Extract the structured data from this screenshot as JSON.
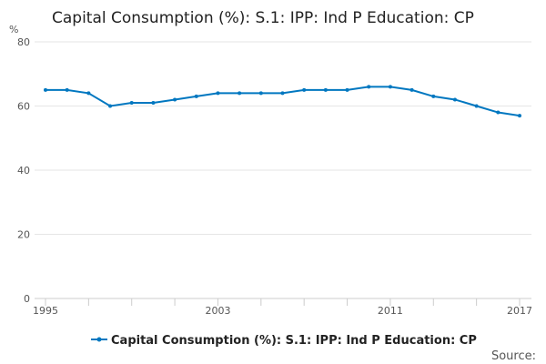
{
  "chart_data": {
    "type": "line",
    "title": "Capital Consumption (%): S.1: IPP: Ind P Education: CP",
    "ylabel": "%",
    "xlabel": "",
    "ylim": [
      0,
      80
    ],
    "yticks": [
      0,
      20,
      40,
      60,
      80
    ],
    "xticks_labeled": [
      1995,
      2003,
      2011,
      2017
    ],
    "grid": true,
    "legend_position": "bottom",
    "x": [
      1995,
      1996,
      1997,
      1998,
      1999,
      2000,
      2001,
      2002,
      2003,
      2004,
      2005,
      2006,
      2007,
      2008,
      2009,
      2010,
      2011,
      2012,
      2013,
      2014,
      2015,
      2016,
      2017
    ],
    "series": [
      {
        "name": "Capital Consumption (%): S.1: IPP: Ind P Education: CP",
        "color": "#0077c0",
        "values": [
          65,
          65,
          64,
          60,
          61,
          61,
          62,
          63,
          64,
          64,
          64,
          64,
          65,
          65,
          65,
          66,
          66,
          65,
          63,
          62,
          60,
          58,
          57
        ]
      }
    ]
  },
  "source_label": "Source:"
}
